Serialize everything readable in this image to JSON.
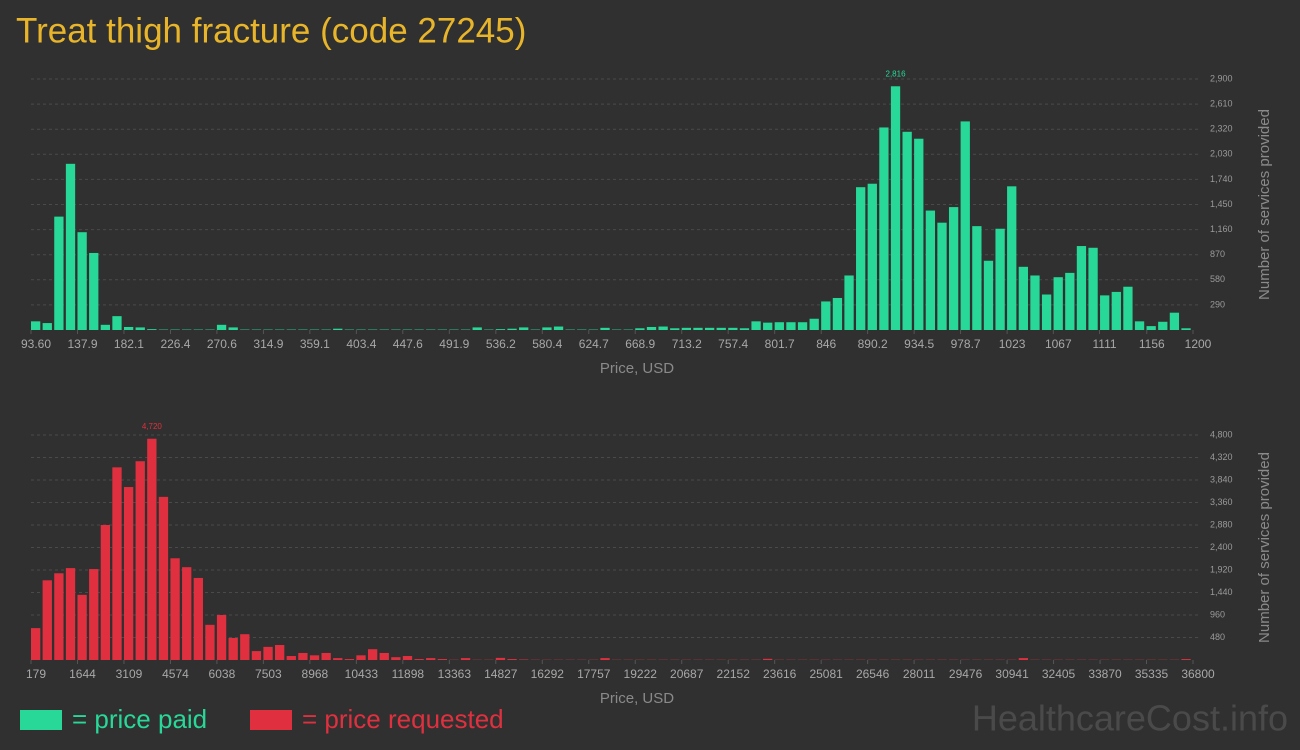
{
  "title": "Treat thigh fracture (code 27245)",
  "watermark": "HealthcareCost.info",
  "legend": [
    {
      "label": "= price paid",
      "color": "#27d898"
    },
    {
      "label": "= price requested",
      "color": "#e0303f"
    }
  ],
  "chart_data": [
    {
      "type": "bar",
      "color": "#27d898",
      "x_label": "Price, USD",
      "y_label": "Number of services provided",
      "grid": true,
      "xlim": [
        93.6,
        1200
      ],
      "xticks": [
        {
          "value": 93.6,
          "label": "93.60"
        },
        137.9,
        182.1,
        226.4,
        270.6,
        314.9,
        359.1,
        403.4,
        447.6,
        491.9,
        536.2,
        580.4,
        624.7,
        668.9,
        713.2,
        757.4,
        801.7,
        846,
        890.2,
        934.5,
        978.7,
        1023,
        1067,
        1111,
        1156,
        1200
      ],
      "ylim": [
        0,
        2900
      ],
      "yticks": [
        290,
        580,
        870,
        {
          "value": 1160,
          "label": "1,160"
        },
        {
          "value": 1450,
          "label": "1,450"
        },
        {
          "value": 1740,
          "label": "1,740"
        },
        {
          "value": 2030,
          "label": "2,030"
        },
        {
          "value": 2320,
          "label": "2,320"
        },
        {
          "value": 2610,
          "label": "2,610"
        },
        {
          "value": 2900,
          "label": "2,900"
        }
      ],
      "values": [
        100,
        80,
        1310,
        1920,
        1130,
        890,
        60,
        160,
        35,
        30,
        10,
        5,
        5,
        5,
        5,
        5,
        60,
        30,
        5,
        5,
        5,
        5,
        5,
        5,
        5,
        5,
        15,
        5,
        5,
        5,
        5,
        5,
        5,
        5,
        5,
        5,
        5,
        5,
        30,
        5,
        10,
        15,
        30,
        5,
        30,
        40,
        5,
        5,
        5,
        25,
        5,
        5,
        20,
        35,
        40,
        20,
        25,
        25,
        25,
        25,
        25,
        20,
        100,
        85,
        90,
        90,
        90,
        130,
        330,
        370,
        630,
        1650,
        1690,
        2340,
        2816,
        2290,
        2210,
        1380,
        1240,
        1420,
        2410,
        1200,
        800,
        1170,
        1660,
        730,
        630,
        410,
        610,
        660,
        970,
        950,
        400,
        440,
        500,
        100,
        45,
        95,
        200,
        20
      ],
      "value_labels": [
        null,
        null,
        null,
        null,
        null,
        null,
        null,
        null,
        null,
        null,
        null,
        null,
        null,
        null,
        null,
        null,
        null,
        null,
        null,
        null,
        null,
        null,
        null,
        null,
        null,
        null,
        null,
        null,
        null,
        null,
        null,
        null,
        null,
        null,
        null,
        null,
        null,
        null,
        null,
        null,
        null,
        null,
        null,
        null,
        null,
        null,
        null,
        null,
        null,
        null,
        null,
        null,
        null,
        null,
        null,
        null,
        null,
        null,
        null,
        null,
        null,
        null,
        null,
        null,
        null,
        null,
        null,
        null,
        null,
        null,
        null,
        null,
        null,
        null,
        "2,816",
        null,
        null,
        null,
        null,
        null,
        null,
        null,
        null,
        null,
        null,
        null,
        null,
        null,
        null,
        null,
        null,
        null,
        null,
        null,
        null,
        null,
        null,
        null,
        null,
        null
      ]
    },
    {
      "type": "bar",
      "color": "#e0303f",
      "x_label": "Price, USD",
      "y_label": "Number of services provided",
      "grid": true,
      "xlim": [
        179,
        36800
      ],
      "xticks": [
        179,
        1644,
        3109,
        4574,
        6038,
        7503,
        8968,
        10433,
        11898,
        13363,
        14827,
        16292,
        17757,
        19222,
        20687,
        22152,
        23616,
        25081,
        26546,
        28011,
        29476,
        30941,
        32405,
        33870,
        35335,
        36800
      ],
      "ylim": [
        0,
        4800
      ],
      "yticks": [
        480,
        960,
        {
          "value": 1440,
          "label": "1,440"
        },
        {
          "value": 1920,
          "label": "1,920"
        },
        {
          "value": 2400,
          "label": "2,400"
        },
        {
          "value": 2880,
          "label": "2,880"
        },
        {
          "value": 3360,
          "label": "3,360"
        },
        {
          "value": 3840,
          "label": "3,840"
        },
        {
          "value": 4320,
          "label": "4,320"
        },
        {
          "value": 4800,
          "label": "4,800"
        }
      ],
      "values": [
        680,
        1700,
        1850,
        1960,
        1390,
        1940,
        2880,
        4110,
        3690,
        4240,
        4720,
        3480,
        2170,
        1980,
        1750,
        750,
        960,
        470,
        550,
        190,
        280,
        320,
        85,
        150,
        100,
        150,
        40,
        20,
        100,
        230,
        150,
        60,
        85,
        20,
        40,
        20,
        5,
        40,
        5,
        5,
        45,
        20,
        10,
        5,
        5,
        5,
        5,
        5,
        5,
        40,
        5,
        5,
        5,
        5,
        5,
        5,
        5,
        5,
        5,
        5,
        5,
        5,
        5,
        25,
        5,
        5,
        5,
        5,
        5,
        5,
        5,
        5,
        5,
        5,
        5,
        5,
        5,
        5,
        5,
        5,
        5,
        5,
        5,
        5,
        5,
        40,
        5,
        5,
        5,
        5,
        5,
        5,
        5,
        5,
        5,
        5,
        5,
        5,
        5,
        20
      ],
      "value_labels": [
        null,
        null,
        null,
        null,
        null,
        null,
        null,
        null,
        null,
        null,
        "4,720",
        null,
        null,
        null,
        null,
        null,
        null,
        null,
        null,
        null,
        null,
        null,
        null,
        null,
        null,
        null,
        null,
        null,
        null,
        null,
        null,
        null,
        null,
        null,
        null,
        null,
        null,
        null,
        null,
        null,
        null,
        null,
        null,
        null,
        null,
        null,
        null,
        null,
        null,
        null,
        null,
        null,
        null,
        null,
        null,
        null,
        null,
        null,
        null,
        null,
        null,
        null,
        null,
        null,
        null,
        null,
        null,
        null,
        null,
        null,
        null,
        null,
        null,
        null,
        null,
        null,
        null,
        null,
        null,
        null,
        null,
        null,
        null,
        null,
        null,
        null,
        null,
        null,
        null,
        null,
        null,
        null,
        null,
        null,
        null,
        null,
        null,
        null,
        null,
        null
      ]
    }
  ]
}
